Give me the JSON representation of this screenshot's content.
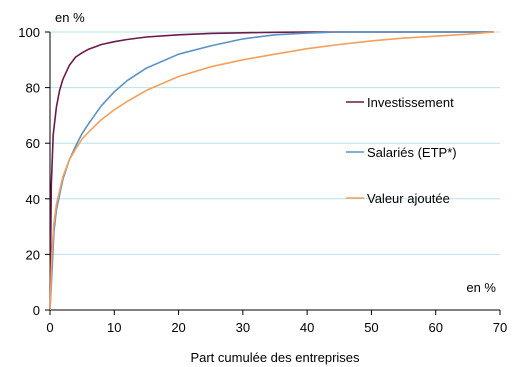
{
  "chart_data": {
    "type": "line",
    "xlabel": "Part cumulée des entreprises",
    "ylabel": "en %",
    "x_unit_label": "en %",
    "xlim": [
      0,
      70
    ],
    "ylim": [
      0,
      100
    ],
    "xticks": [
      0,
      10,
      20,
      30,
      40,
      50,
      60,
      70
    ],
    "yticks": [
      0,
      20,
      40,
      60,
      80,
      100
    ],
    "grid": "horizontal",
    "grid_color": "#b7e3ee",
    "legend_position": "right",
    "series": [
      {
        "name": "Investissement",
        "color": "#6b1a4a",
        "x": [
          0,
          0.2,
          0.5,
          1,
          1.5,
          2,
          3,
          4,
          5,
          6,
          8,
          10,
          12,
          15,
          20,
          25,
          30,
          35,
          40,
          50,
          60,
          69
        ],
        "y": [
          0,
          45,
          63,
          73,
          79,
          83,
          88,
          91,
          92.5,
          93.8,
          95.5,
          96.5,
          97.3,
          98.2,
          99,
          99.5,
          99.7,
          99.9,
          100,
          100,
          100,
          100
        ]
      },
      {
        "name": "Salariés (ETP*)",
        "color": "#5b92c4",
        "x": [
          0,
          0.3,
          0.6,
          1,
          2,
          3,
          4,
          5,
          6,
          8,
          10,
          12,
          15,
          20,
          25,
          30,
          35,
          40,
          45,
          50,
          60,
          69
        ],
        "y": [
          0,
          13,
          28,
          36,
          47,
          54,
          59,
          63.5,
          67,
          73.5,
          78.5,
          82.5,
          87,
          92,
          95,
          97.5,
          99,
          99.6,
          100,
          100,
          100,
          100
        ]
      },
      {
        "name": "Valeur ajoutée",
        "color": "#f2a05a",
        "x": [
          0,
          0.3,
          0.6,
          1,
          2,
          3,
          4,
          5,
          6,
          8,
          10,
          12,
          15,
          20,
          25,
          30,
          35,
          40,
          45,
          50,
          55,
          60,
          65,
          69
        ],
        "y": [
          0,
          20,
          31,
          38,
          48,
          54,
          58,
          61.5,
          64,
          68.5,
          72,
          75,
          79,
          84,
          87.5,
          90,
          92,
          94,
          95.5,
          96.8,
          97.8,
          98.5,
          99.2,
          100
        ]
      }
    ]
  }
}
